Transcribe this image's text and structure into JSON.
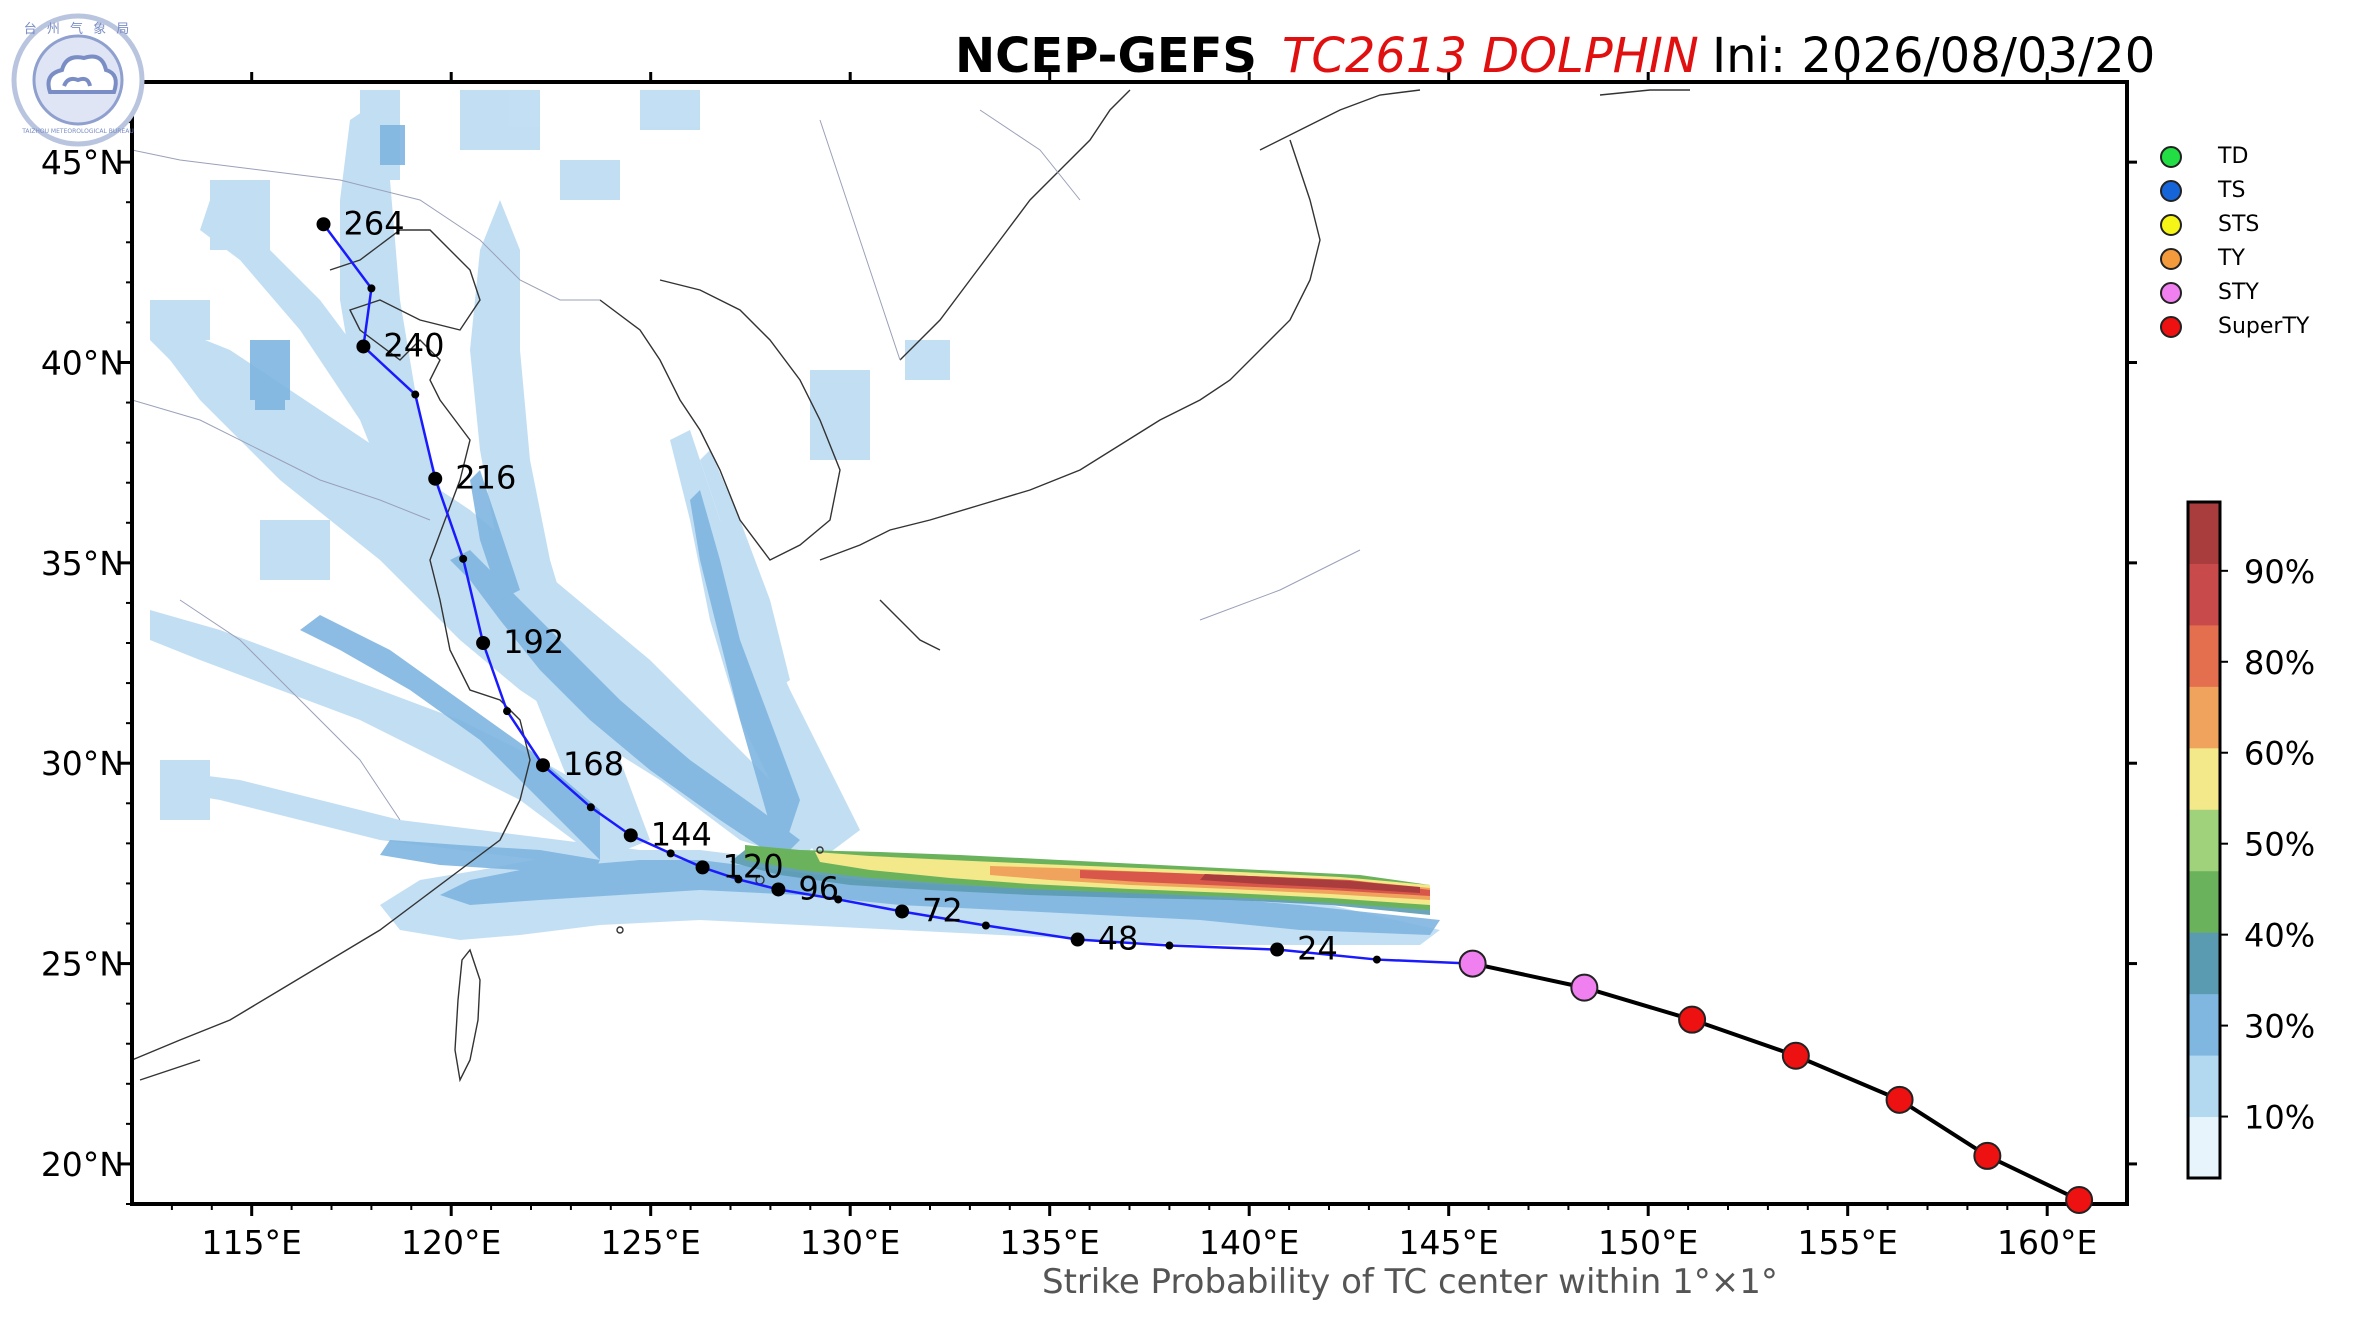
{
  "header": {
    "model": "NCEP-GEFS",
    "storm": "TC2613 DOLPHIN",
    "init": "Ini: 2026/08/03/20"
  },
  "footer": "Strike Probability of TC center within 1°×1°",
  "logo": {
    "text": "台 州 气 象 局",
    "subtext": "TAIZHOU METEOROLOGICAL BUREAU"
  },
  "map": {
    "lon_range": [
      112,
      162
    ],
    "lat_range": [
      19,
      47
    ],
    "lon_ticks": [
      115,
      120,
      125,
      130,
      135,
      140,
      145,
      150,
      155,
      160
    ],
    "lon_labels": [
      "115°E",
      "120°E",
      "125°E",
      "130°E",
      "135°E",
      "140°E",
      "145°E",
      "150°E",
      "155°E",
      "160°E"
    ],
    "lat_ticks": [
      20,
      25,
      30,
      35,
      40,
      45
    ],
    "lat_labels": [
      "20°N",
      "25°N",
      "30°N",
      "35°N",
      "40°N",
      "45°N"
    ]
  },
  "legend": {
    "items": [
      {
        "label": "TD",
        "color": "#22dd44"
      },
      {
        "label": "TS",
        "color": "#1565d8"
      },
      {
        "label": "STS",
        "color": "#f5f518"
      },
      {
        "label": "TY",
        "color": "#f39a3c"
      },
      {
        "label": "STY",
        "color": "#f080f0"
      },
      {
        "label": "SuperTY",
        "color": "#ee1111"
      }
    ]
  },
  "colorbar": {
    "labels": [
      "10%",
      "30%",
      "40%",
      "50%",
      "60%",
      "80%",
      "90%"
    ],
    "colors": [
      "#e8f4fb",
      "#b3d9f1",
      "#7fb7e0",
      "#5b9bb1",
      "#6ab35c",
      "#9fd27a",
      "#f4e98a",
      "#f0a35c",
      "#e46f4f",
      "#c94a4a",
      "#a93d3d"
    ]
  },
  "past_track": {
    "points": [
      {
        "lon": 160.8,
        "lat": 19.1,
        "cat": "SuperTY"
      },
      {
        "lon": 158.5,
        "lat": 20.2,
        "cat": "SuperTY"
      },
      {
        "lon": 156.3,
        "lat": 21.6,
        "cat": "SuperTY"
      },
      {
        "lon": 153.7,
        "lat": 22.7,
        "cat": "SuperTY"
      },
      {
        "lon": 151.1,
        "lat": 23.6,
        "cat": "SuperTY"
      },
      {
        "lon": 148.4,
        "lat": 24.4,
        "cat": "STY"
      },
      {
        "lon": 145.6,
        "lat": 25.0,
        "cat": "STY"
      }
    ]
  },
  "forecast_track": {
    "points": [
      {
        "lon": 143.2,
        "lat": 25.1,
        "label": ""
      },
      {
        "lon": 140.7,
        "lat": 25.35,
        "label": "24"
      },
      {
        "lon": 138.0,
        "lat": 25.45,
        "label": ""
      },
      {
        "lon": 135.7,
        "lat": 25.6,
        "label": "48"
      },
      {
        "lon": 133.4,
        "lat": 25.95,
        "label": ""
      },
      {
        "lon": 131.3,
        "lat": 26.3,
        "label": "72"
      },
      {
        "lon": 129.7,
        "lat": 26.6,
        "label": ""
      },
      {
        "lon": 128.2,
        "lat": 26.85,
        "label": "96"
      },
      {
        "lon": 127.2,
        "lat": 27.1,
        "label": ""
      },
      {
        "lon": 126.3,
        "lat": 27.4,
        "label": "120"
      },
      {
        "lon": 125.5,
        "lat": 27.75,
        "label": ""
      },
      {
        "lon": 124.5,
        "lat": 28.2,
        "label": "144"
      },
      {
        "lon": 123.5,
        "lat": 28.9,
        "label": ""
      },
      {
        "lon": 122.3,
        "lat": 29.95,
        "label": "168"
      },
      {
        "lon": 121.4,
        "lat": 31.3,
        "label": ""
      },
      {
        "lon": 120.8,
        "lat": 33.0,
        "label": "192"
      },
      {
        "lon": 120.3,
        "lat": 35.1,
        "label": ""
      },
      {
        "lon": 119.6,
        "lat": 37.1,
        "label": "216"
      },
      {
        "lon": 119.1,
        "lat": 39.2,
        "label": ""
      },
      {
        "lon": 117.8,
        "lat": 40.4,
        "label": "240"
      },
      {
        "lon": 118.0,
        "lat": 41.85,
        "label": ""
      },
      {
        "lon": 116.8,
        "lat": 43.45,
        "label": "264"
      }
    ]
  }
}
